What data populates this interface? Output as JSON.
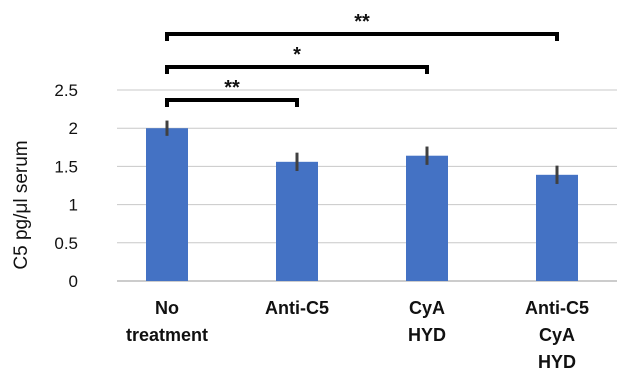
{
  "chart_data": {
    "type": "bar",
    "categories": [
      [
        "No",
        "treatment"
      ],
      [
        "Anti-C5"
      ],
      [
        "CyA",
        "HYD"
      ],
      [
        "Anti-C5",
        "CyA",
        "HYD"
      ]
    ],
    "values": [
      2.0,
      1.56,
      1.64,
      1.39
    ],
    "errors": [
      0.1,
      0.12,
      0.12,
      0.12
    ],
    "ylabel": "C5 pg/μl serum",
    "ylim": [
      0,
      2.5
    ],
    "yticks": [
      "0",
      "0.5",
      "1",
      "1.5",
      "2",
      "2.5"
    ],
    "ytick_values": [
      0,
      0.5,
      1,
      1.5,
      2,
      2.5
    ],
    "grid": true,
    "bar_color": "#4472C4",
    "error_color": "#404040",
    "significance": [
      {
        "from": 0,
        "to": 1,
        "label": "**"
      },
      {
        "from": 0,
        "to": 2,
        "label": "*"
      },
      {
        "from": 0,
        "to": 3,
        "label": "**"
      }
    ]
  }
}
